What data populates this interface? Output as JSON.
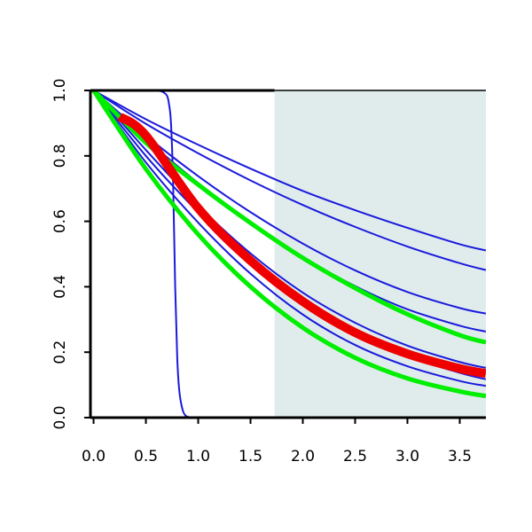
{
  "chart_data": {
    "type": "line",
    "title": "",
    "xlabel": "",
    "ylabel": "",
    "xlim": [
      -0.03,
      3.75
    ],
    "ylim": [
      0.0,
      1.0
    ],
    "x_ticks": [
      0.0,
      0.5,
      1.0,
      1.5,
      2.0,
      2.5,
      3.0,
      3.5
    ],
    "x_tick_labels": [
      "0.0",
      "0.5",
      "1.0",
      "1.5",
      "2.0",
      "2.5",
      "3.0",
      "3.5"
    ],
    "y_ticks": [
      0.0,
      0.2,
      0.4,
      0.6,
      0.8,
      1.0
    ],
    "y_tick_labels": [
      "0.0",
      "0.2",
      "0.4",
      "0.6",
      "0.8",
      "1.0"
    ],
    "shaded_region": {
      "x_from": 1.73,
      "x_to": 3.75,
      "color": "#e0ecec"
    },
    "grid": false,
    "legend": "none",
    "colors": {
      "blue": "#1a1adc",
      "red": "#ee0000",
      "green": "#00ee00",
      "axis": "#000000"
    },
    "series": [
      {
        "color": "blue",
        "width": 2,
        "x": [
          0,
          0.5,
          1,
          1.5,
          2,
          2.5,
          3,
          3.5,
          3.75
        ],
        "y": [
          1.0,
          0.912,
          0.834,
          0.761,
          0.693,
          0.634,
          0.58,
          0.53,
          0.511
        ]
      },
      {
        "color": "blue",
        "width": 2,
        "x": [
          0,
          0.5,
          1,
          1.5,
          2,
          2.5,
          3,
          3.5,
          3.75
        ],
        "y": [
          1.0,
          0.898,
          0.808,
          0.725,
          0.65,
          0.583,
          0.523,
          0.472,
          0.451
        ]
      },
      {
        "color": "blue",
        "width": 2,
        "x": [
          0,
          0.5,
          1,
          1.5,
          2,
          2.5,
          3,
          3.5,
          3.75
        ],
        "y": [
          1.0,
          0.862,
          0.738,
          0.628,
          0.532,
          0.45,
          0.384,
          0.335,
          0.318
        ]
      },
      {
        "color": "blue",
        "width": 2,
        "x": [
          0,
          0.5,
          1,
          1.5,
          2,
          2.5,
          3,
          3.5,
          3.75
        ],
        "y": [
          1.0,
          0.852,
          0.717,
          0.597,
          0.491,
          0.402,
          0.331,
          0.281,
          0.263
        ]
      },
      {
        "color": "blue",
        "width": 2,
        "x": [
          0,
          0.5,
          1,
          1.5,
          2,
          2.5,
          3,
          3.5,
          3.75
        ],
        "y": [
          1.0,
          0.818,
          0.648,
          0.502,
          0.382,
          0.29,
          0.22,
          0.17,
          0.152
        ]
      },
      {
        "color": "blue",
        "width": 2,
        "x": [
          0,
          0.5,
          1,
          1.5,
          2,
          2.5,
          3,
          3.5,
          3.75
        ],
        "y": [
          1.0,
          0.8,
          0.628,
          0.478,
          0.355,
          0.258,
          0.188,
          0.137,
          0.117
        ]
      },
      {
        "color": "blue",
        "width": 2,
        "x": [
          0,
          0.5,
          1,
          1.5,
          2,
          2.5,
          3,
          3.5,
          3.75
        ],
        "y": [
          1.0,
          0.78,
          0.596,
          0.44,
          0.315,
          0.222,
          0.157,
          0.112,
          0.097
        ]
      },
      {
        "color": "blue",
        "width": 2,
        "x": [
          0,
          0.5,
          0.6,
          0.65,
          0.7,
          0.72,
          0.74,
          0.76,
          0.78,
          0.8,
          0.82,
          0.85,
          0.88,
          0.92,
          1.0,
          2.0,
          3.75
        ],
        "y": [
          1.0,
          1.0,
          0.999,
          0.997,
          0.985,
          0.96,
          0.9,
          0.72,
          0.4,
          0.18,
          0.08,
          0.025,
          0.006,
          0.001,
          0.0,
          0.0,
          0.0
        ]
      },
      {
        "color": "green",
        "width": 5,
        "x": [
          0,
          0.5,
          1,
          1.5,
          2,
          2.5,
          3,
          3.5,
          3.75
        ],
        "y": [
          1.0,
          0.84,
          0.712,
          0.595,
          0.488,
          0.396,
          0.316,
          0.252,
          0.23
        ]
      },
      {
        "color": "green",
        "width": 5,
        "x": [
          0,
          0.5,
          1,
          1.5,
          2,
          2.5,
          3,
          3.5,
          3.75
        ],
        "y": [
          1.0,
          0.76,
          0.56,
          0.4,
          0.275,
          0.183,
          0.12,
          0.08,
          0.066
        ]
      },
      {
        "color": "red",
        "width": 10,
        "x": [
          0.25,
          0.5,
          1,
          1.5,
          2,
          2.5,
          3,
          3.5,
          3.75
        ],
        "y": [
          0.92,
          0.862,
          0.64,
          0.48,
          0.355,
          0.26,
          0.195,
          0.15,
          0.135
        ]
      }
    ]
  }
}
